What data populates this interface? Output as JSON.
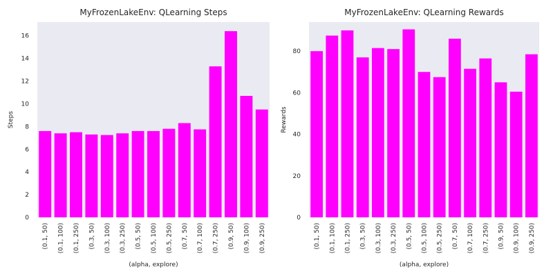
{
  "chart_data": [
    {
      "type": "bar",
      "title": "MyFrozenLakeEnv: QLearning Steps",
      "xlabel": "(alpha, explore)",
      "ylabel": "Steps",
      "categories": [
        "(0.1, 50)",
        "(0.1, 100)",
        "(0.1, 250)",
        "(0.3, 50)",
        "(0.3, 100)",
        "(0.3, 250)",
        "(0.5, 50)",
        "(0.5, 100)",
        "(0.5, 250)",
        "(0.7, 50)",
        "(0.7, 100)",
        "(0.7, 250)",
        "(0.9, 50)",
        "(0.9, 100)",
        "(0.9, 250)"
      ],
      "values": [
        7.6,
        7.4,
        7.5,
        7.3,
        7.25,
        7.4,
        7.6,
        7.6,
        7.8,
        8.3,
        7.75,
        13.3,
        16.4,
        10.7,
        9.5
      ],
      "ylim": [
        0,
        17.2
      ],
      "yticks": [
        0,
        2,
        4,
        6,
        8,
        10,
        12,
        14,
        16
      ],
      "color": "#ff00ff",
      "background": "#eaeaf2",
      "grid": false
    },
    {
      "type": "bar",
      "title": "MyFrozenLakeEnv: QLearning Rewards",
      "xlabel": "(alpha, explore)",
      "ylabel": "Rewards",
      "categories": [
        "(0.1, 50)",
        "(0.1, 100)",
        "(0.1, 250)",
        "(0.3, 50)",
        "(0.3, 100)",
        "(0.3, 250)",
        "(0.5, 50)",
        "(0.5, 100)",
        "(0.5, 250)",
        "(0.7, 50)",
        "(0.7, 100)",
        "(0.7, 250)",
        "(0.9, 50)",
        "(0.9, 100)",
        "(0.9, 250)"
      ],
      "values": [
        80,
        87.5,
        90,
        77,
        81.5,
        81,
        90.5,
        70,
        67.5,
        86,
        71.5,
        76.5,
        65,
        60.5,
        78.5
      ],
      "ylim": [
        0,
        94
      ],
      "yticks": [
        0,
        20,
        40,
        60,
        80
      ],
      "color": "#ff00ff",
      "background": "#eaeaf2",
      "grid": false
    }
  ]
}
